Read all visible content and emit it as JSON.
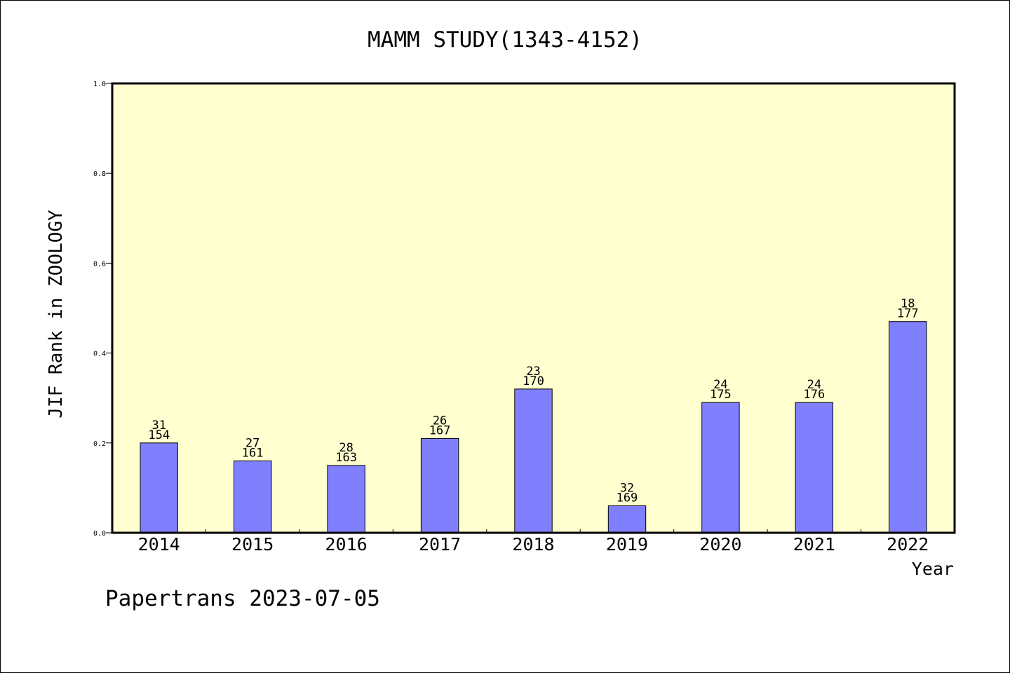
{
  "chart_data": {
    "type": "bar",
    "title": "MAMM STUDY(1343-4152)",
    "xlabel": "Year",
    "ylabel": "JIF Rank in ZOOLOGY",
    "ylim": [
      0,
      1.0
    ],
    "yticks": [
      "0.0",
      "0.2",
      "0.4",
      "0.6",
      "0.8",
      "1.0"
    ],
    "categories": [
      "2014",
      "2015",
      "2016",
      "2017",
      "2018",
      "2019",
      "2020",
      "2021",
      "2022"
    ],
    "values": [
      0.2,
      0.16,
      0.15,
      0.21,
      0.32,
      0.06,
      0.29,
      0.29,
      0.47
    ],
    "rank": [
      "31",
      "27",
      "28",
      "26",
      "23",
      "32",
      "24",
      "24",
      "18"
    ],
    "total": [
      "154",
      "161",
      "163",
      "167",
      "170",
      "169",
      "175",
      "176",
      "177"
    ],
    "grid": false,
    "legend": "none",
    "colors": {
      "bar": "#8080ff",
      "plot_background": "#ffffd0",
      "axis": "#000000"
    }
  },
  "footer": {
    "watermark": "Papertrans 2023-07-05"
  }
}
